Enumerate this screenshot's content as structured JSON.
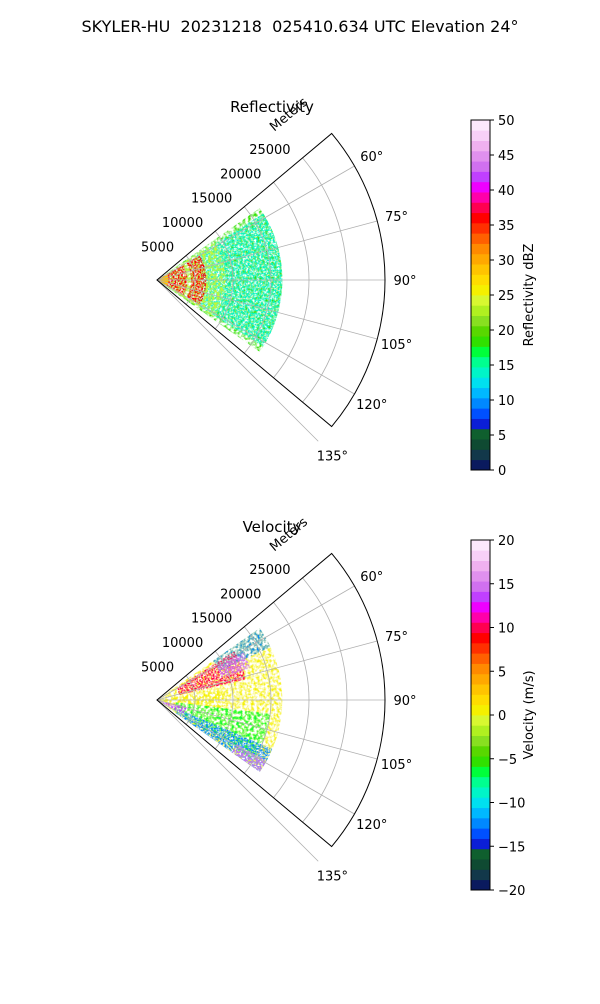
{
  "title": "SKYLER-HU  20231218  025410.634 UTC Elevation 24°",
  "chart_data": [
    {
      "type": "polar-sector",
      "title": "Reflectivity",
      "radial_axis_label": "Meters",
      "radial_ticks": [
        5000,
        10000,
        15000,
        20000,
        25000
      ],
      "radial_tick_labels": [
        "5000",
        "10000",
        "15000",
        "20000",
        "25000"
      ],
      "rlim": [
        0,
        30000
      ],
      "theta_ticks": [
        60,
        75,
        90,
        105,
        120,
        135
      ],
      "theta_tick_labels": [
        "60°",
        "75°",
        "90°",
        "105°",
        "120°",
        "135°"
      ],
      "theta_range": [
        50,
        130
      ],
      "grid": true,
      "colorbar": {
        "label": "Reflectivity dBZ",
        "range": [
          0,
          50
        ],
        "ticks": [
          0,
          5,
          10,
          15,
          20,
          25,
          30,
          35,
          40,
          45,
          50
        ],
        "tick_labels": [
          "0",
          "5",
          "10",
          "15",
          "20",
          "25",
          "30",
          "35",
          "40",
          "45",
          "50"
        ],
        "colors": [
          "#0a1a5e",
          "#12384a",
          "#0f4a32",
          "#0f5f2e",
          "#0b1fd6",
          "#0050ff",
          "#0088ff",
          "#00b8ff",
          "#00e0f0",
          "#00f5c8",
          "#00ff90",
          "#00ff3a",
          "#30e000",
          "#58d800",
          "#88e020",
          "#b0f020",
          "#d8f830",
          "#f5f000",
          "#ffdc00",
          "#ffc400",
          "#ffa800",
          "#ff8a00",
          "#ff6000",
          "#ff3000",
          "#ff0000",
          "#ff0050",
          "#ff00aa",
          "#ee00ff",
          "#c040ff",
          "#d070f0",
          "#e090ee",
          "#f0b0f0",
          "#f8d0f8",
          "#fce8fc"
        ]
      },
      "data_summary": {
        "max_range_m": 16500,
        "azimuth_extent": [
          55,
          125
        ],
        "near_range_dbz": 36,
        "band_range_m": [
          4500,
          6500
        ],
        "band_dbz": 36,
        "far_range_dbz": 18
      }
    },
    {
      "type": "polar-sector",
      "title": "Velocity",
      "radial_axis_label": "Meters",
      "radial_ticks": [
        5000,
        10000,
        15000,
        20000,
        25000
      ],
      "radial_tick_labels": [
        "5000",
        "10000",
        "15000",
        "20000",
        "25000"
      ],
      "rlim": [
        0,
        30000
      ],
      "theta_ticks": [
        60,
        75,
        90,
        105,
        120,
        135
      ],
      "theta_tick_labels": [
        "60°",
        "75°",
        "90°",
        "105°",
        "120°",
        "135°"
      ],
      "theta_range": [
        50,
        130
      ],
      "grid": true,
      "colorbar": {
        "label": "Velocity (m/s)",
        "range": [
          -20,
          20
        ],
        "ticks": [
          -20,
          -15,
          -10,
          -5,
          0,
          5,
          10,
          15,
          20
        ],
        "tick_labels": [
          "−20",
          "−15",
          "−10",
          "−5",
          "0",
          "5",
          "10",
          "15",
          "20"
        ],
        "colors": [
          "#0a1a5e",
          "#12384a",
          "#0f4a32",
          "#0f5f2e",
          "#0b1fd6",
          "#0050ff",
          "#0088ff",
          "#00b8ff",
          "#00e0f0",
          "#00f5c8",
          "#00ff90",
          "#00ff3a",
          "#30e000",
          "#58d800",
          "#88e020",
          "#b0f020",
          "#d8f830",
          "#f5f000",
          "#ffdc00",
          "#ffc400",
          "#ffa800",
          "#ff8a00",
          "#ff6000",
          "#ff3000",
          "#ff0000",
          "#ff0050",
          "#ff00aa",
          "#ee00ff",
          "#c040ff",
          "#d070f0",
          "#e090ee",
          "#f0b0f0",
          "#f8d0f8",
          "#fce8fc"
        ]
      },
      "data_summary": {
        "max_range_m": 16500,
        "azimuth_extent": [
          55,
          125
        ],
        "north_sector_velocity_ms": 10,
        "center_sector_velocity_ms": 0,
        "south_sector_velocity_ms": -7,
        "outer_edge_velocity_ms": -12
      }
    }
  ]
}
